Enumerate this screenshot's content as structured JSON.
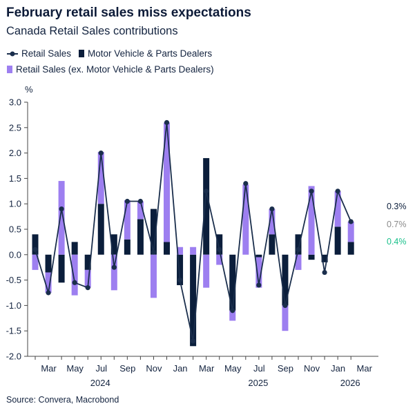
{
  "title": "February retail sales miss expectations",
  "subtitle": "Canada Retail Sales contributions",
  "source": "Source: Convera, Macrobond",
  "colors": {
    "motor": "#0b1e3b",
    "ex_motor": "#9d7ff0",
    "line": "#1a2e4c",
    "label_total": "#0b1e3b",
    "label_ex": "#8a8a8a",
    "label_motor_green": "#19c08a"
  },
  "chart_data": {
    "type": "bar",
    "stacked": true,
    "y_unit_label": "%",
    "ylim": [
      -2.0,
      3.0
    ],
    "yticks": [
      "3.0",
      "2.5",
      "2.0",
      "1.5",
      "1.0",
      "0.5",
      "0.0",
      "-0.5",
      "-1.0",
      "-1.5",
      "-2.0"
    ],
    "x_tick_labels": [
      "Mar",
      "May",
      "Jul",
      "Sep",
      "Nov",
      "Jan",
      "Mar",
      "May",
      "Jul",
      "Sep",
      "Nov",
      "Jan",
      "Mar"
    ],
    "x_year_labels": [
      "2024",
      "2025",
      "2026"
    ],
    "categories": [
      "2024-02",
      "2024-03",
      "2024-04",
      "2024-05",
      "2024-06",
      "2024-07",
      "2024-08",
      "2024-09",
      "2024-10",
      "2024-11",
      "2024-12",
      "2025-01",
      "2025-02",
      "2025-03",
      "2025-04",
      "2025-05",
      "2025-06",
      "2025-07",
      "2025-08",
      "2025-09",
      "2025-10",
      "2025-11",
      "2025-12",
      "2026-01",
      "2026-02"
    ],
    "series": [
      {
        "name": "Retail Sales",
        "kind": "line",
        "values": [
          0.1,
          -0.75,
          0.9,
          -0.55,
          -0.65,
          2.0,
          -0.25,
          1.05,
          1.05,
          0.05,
          2.6,
          -0.5,
          -1.7,
          1.25,
          0.1,
          -1.1,
          1.4,
          -0.6,
          0.9,
          -1.0,
          0.1,
          1.25,
          -0.35,
          1.25,
          0.65
        ]
      },
      {
        "name": "Motor Vehicle & Parts Dealers",
        "kind": "bar",
        "values": [
          0.4,
          -0.35,
          -0.55,
          0.25,
          -0.3,
          1.0,
          0.4,
          0.3,
          0.7,
          0.9,
          0.25,
          -0.6,
          -1.8,
          1.9,
          0.4,
          -1.1,
          0.0,
          -0.05,
          0.4,
          -1.0,
          0.4,
          -0.1,
          -0.15,
          0.55,
          0.25
        ]
      },
      {
        "name": "Retail Sales (ex. Motor Vehicle & Parts Dealers)",
        "kind": "bar",
        "values": [
          -0.3,
          -0.4,
          1.45,
          -0.8,
          -0.35,
          1.02,
          -0.7,
          0.77,
          0.35,
          -0.85,
          2.35,
          0.15,
          0.15,
          -0.65,
          -0.2,
          -0.2,
          1.38,
          -0.6,
          0.5,
          -0.5,
          -0.3,
          1.35,
          0.0,
          0.7,
          0.4
        ]
      }
    ],
    "end_labels": [
      "0.3%",
      "0.7%",
      "0.4%"
    ]
  }
}
